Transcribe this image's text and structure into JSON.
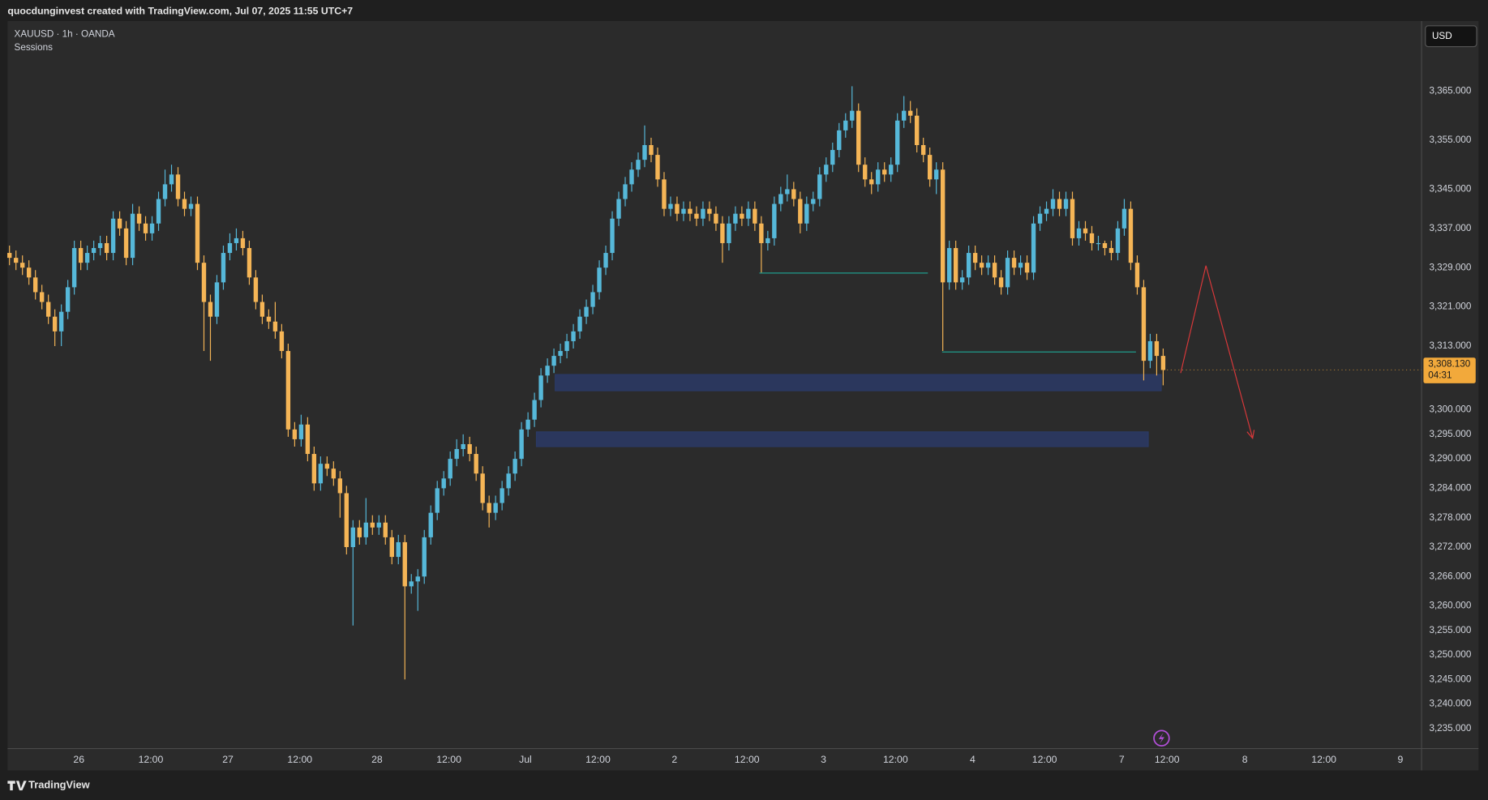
{
  "header": {
    "credit": "quocdunginvest created with TradingView.com, Jul 07, 2025 11:55 UTC+7",
    "symbol": "XAUUSD · 1h · OANDA",
    "indicator": "Sessions",
    "currency": "USD",
    "brand": "TradingView"
  },
  "chart_data": {
    "type": "candlestick",
    "up_color": "#56b8d9",
    "down_color": "#f5b556",
    "open": [
      3332,
      3331,
      3330,
      3329,
      3327,
      3324,
      3322,
      3319,
      3316,
      3320,
      3325,
      3333,
      3330,
      3332,
      3333,
      3334,
      3332,
      3339,
      3337,
      3331,
      3340,
      3338,
      3336,
      3338,
      3343,
      3346,
      3348,
      3343,
      3341,
      3342,
      3330,
      3322,
      3319,
      3326,
      3332,
      3334,
      3335,
      3333,
      3327,
      3322,
      3319,
      3318,
      3316,
      3312,
      3296,
      3294,
      3297,
      3291,
      3285,
      3289,
      3288,
      3286,
      3283,
      3272,
      3276,
      3274,
      3277,
      3276,
      3277,
      3274,
      3270,
      3273,
      3264,
      3265,
      3266,
      3274,
      3279,
      3284,
      3286,
      3290,
      3292,
      3293,
      3291,
      3287,
      3281,
      3279,
      3281,
      3284,
      3287,
      3290,
      3296,
      3298,
      3302,
      3307,
      3309,
      3311,
      3312,
      3314,
      3316,
      3319,
      3321,
      3324,
      3329,
      3332,
      3339,
      3343,
      3346,
      3349,
      3351,
      3354,
      3352,
      3347,
      3341,
      3342,
      3340,
      3341,
      3340,
      3339,
      3341,
      3340,
      3338,
      3334,
      3338,
      3340,
      3339,
      3341,
      3338,
      3334,
      3335,
      3342,
      3344,
      3345,
      3343,
      3338,
      3342,
      3343,
      3348,
      3350,
      3353,
      3357,
      3359,
      3361,
      3350,
      3347,
      3346,
      3349,
      3348,
      3350,
      3359,
      3361,
      3360,
      3354,
      3352,
      3347,
      3349,
      3326,
      3333,
      3326,
      3327,
      3332,
      3330,
      3329,
      3330,
      3327,
      3325,
      3331,
      3329,
      3330,
      3328,
      3338,
      3340,
      3341,
      3343,
      3341,
      3343,
      3335,
      3337,
      3336,
      3334,
      3334,
      3333,
      3332,
      3337,
      3341,
      3330,
      3325,
      3310,
      3314,
      3311
    ],
    "high": [
      3333.5,
      3332.5,
      3331.5,
      3330.5,
      3328.5,
      3325.5,
      3323.5,
      3320.5,
      3321.5,
      3326.5,
      3334.5,
      3334.5,
      3333.5,
      3334.5,
      3335.5,
      3335.5,
      3340.5,
      3340.5,
      3338.5,
      3342,
      3341.5,
      3339.5,
      3339.5,
      3344.5,
      3349,
      3350,
      3349.5,
      3344.5,
      3343.5,
      3343.5,
      3331.5,
      3323.5,
      3327.5,
      3333.5,
      3336,
      3337,
      3336.5,
      3334.5,
      3328.5,
      3323.5,
      3320.5,
      3322,
      3317.5,
      3313.5,
      3297.5,
      3299,
      3298.5,
      3292.5,
      3290.5,
      3290.5,
      3289.5,
      3287.5,
      3284.5,
      3277.5,
      3277.5,
      3282,
      3278.5,
      3278.5,
      3278.5,
      3275.5,
      3274.5,
      3274.5,
      3266.5,
      3267.5,
      3275.5,
      3280.5,
      3285.5,
      3287.5,
      3291.5,
      3294,
      3295,
      3294.5,
      3292.5,
      3288.5,
      3282.5,
      3282.5,
      3285.5,
      3288.5,
      3291.5,
      3297.5,
      3299.5,
      3303.5,
      3308.5,
      3310.5,
      3312.5,
      3313.5,
      3315.5,
      3317.5,
      3320.5,
      3322.5,
      3325.5,
      3330.5,
      3333.5,
      3340.5,
      3344.5,
      3347.5,
      3350.5,
      3352.5,
      3358,
      3355.5,
      3353.5,
      3348.5,
      3343.5,
      3343.5,
      3342.5,
      3342.5,
      3341.5,
      3342.5,
      3342.5,
      3341.5,
      3339.5,
      3339.5,
      3341.5,
      3341.5,
      3342.5,
      3342.5,
      3339.5,
      3336.5,
      3343.5,
      3345.5,
      3348,
      3346.5,
      3344.5,
      3343.5,
      3344.5,
      3349.5,
      3351.5,
      3354.5,
      3358.5,
      3360.5,
      3366,
      3362.5,
      3351.5,
      3348.5,
      3350.5,
      3350.5,
      3351.5,
      3360.5,
      3364,
      3363,
      3361.5,
      3355.5,
      3353.5,
      3350.5,
      3350.5,
      3334.5,
      3334.5,
      3328.5,
      3333.5,
      3333.5,
      3331.5,
      3331.5,
      3331.5,
      3328.5,
      3332.5,
      3332.5,
      3331.5,
      3331.5,
      3339.5,
      3341.5,
      3342.5,
      3345,
      3344.5,
      3344.5,
      3344.5,
      3338.5,
      3338.5,
      3337.5,
      3335.5,
      3334.5,
      3334.5,
      3338.5,
      3343,
      3342.5,
      3331.5,
      3326.5,
      3315.5,
      3315.5,
      3312.5
    ],
    "low": [
      3329.5,
      3328.5,
      3327.5,
      3325.5,
      3322.5,
      3320.5,
      3317.5,
      3313,
      3313,
      3318.5,
      3323.5,
      3328.5,
      3328.5,
      3330.5,
      3331.5,
      3330.5,
      3330.5,
      3335.5,
      3329.5,
      3329.5,
      3336.5,
      3334.5,
      3334.5,
      3336.5,
      3341.5,
      3344.5,
      3341.5,
      3339.5,
      3339.5,
      3328.5,
      3312,
      3310,
      3317.5,
      3324.5,
      3330.5,
      3332.5,
      3331.5,
      3325.5,
      3320.5,
      3317.5,
      3316.5,
      3314.5,
      3310.5,
      3294.5,
      3292.5,
      3292.5,
      3289.5,
      3283.5,
      3283.5,
      3286.5,
      3284.5,
      3278,
      3270.5,
      3256,
      3272.5,
      3272.5,
      3274.5,
      3274.5,
      3272.5,
      3268.5,
      3268.5,
      3245,
      3262.5,
      3259,
      3264.5,
      3272.5,
      3277.5,
      3282.5,
      3284.5,
      3288.5,
      3290.5,
      3289.5,
      3285.5,
      3279.5,
      3276,
      3277.5,
      3279.5,
      3282.5,
      3285.5,
      3288.5,
      3294.5,
      3296.5,
      3300.5,
      3305.5,
      3307.5,
      3309.5,
      3310.5,
      3312.5,
      3314.5,
      3317.5,
      3319.5,
      3322.5,
      3327.5,
      3330.5,
      3337.5,
      3341.5,
      3344.5,
      3347.5,
      3349.5,
      3350.5,
      3345.5,
      3339.5,
      3339.5,
      3338.5,
      3338.5,
      3338.5,
      3337.5,
      3337.5,
      3338.5,
      3336.5,
      3330,
      3332.5,
      3336.5,
      3337.5,
      3337.5,
      3336.5,
      3328,
      3332.5,
      3333.5,
      3340.5,
      3342.5,
      3341.5,
      3336,
      3336.5,
      3340.5,
      3341.5,
      3346.5,
      3348.5,
      3351.5,
      3355.5,
      3357.5,
      3348.5,
      3345.5,
      3344,
      3344.5,
      3346.5,
      3346.5,
      3348.5,
      3357.5,
      3358.5,
      3352.5,
      3350.5,
      3345.5,
      3344,
      3312,
      3324.5,
      3324.5,
      3324.5,
      3325.5,
      3328.5,
      3327.5,
      3327.5,
      3325.5,
      3323.5,
      3323.5,
      3327.5,
      3327.5,
      3326.5,
      3326.5,
      3336.5,
      3338.5,
      3339.5,
      3339.5,
      3339.5,
      3333.5,
      3333.5,
      3334.5,
      3332.5,
      3332.5,
      3331.5,
      3330.5,
      3330.5,
      3335.5,
      3328.5,
      3323.5,
      3306,
      3308.5,
      3307,
      3305
    ],
    "close": [
      3331,
      3330,
      3329,
      3327,
      3324,
      3322,
      3319,
      3316,
      3320,
      3325,
      3333,
      3330,
      3332,
      3333,
      3334,
      3332,
      3339,
      3337,
      3331,
      3340,
      3338,
      3336,
      3338,
      3343,
      3346,
      3348,
      3343,
      3341,
      3342,
      3330,
      3322,
      3319,
      3326,
      3332,
      3334,
      3335,
      3333,
      3327,
      3322,
      3319,
      3318,
      3316,
      3312,
      3296,
      3294,
      3297,
      3291,
      3285,
      3289,
      3288,
      3286,
      3283,
      3272,
      3276,
      3274,
      3277,
      3276,
      3277,
      3274,
      3270,
      3273,
      3264,
      3265,
      3266,
      3274,
      3279,
      3284,
      3286,
      3290,
      3292,
      3293,
      3291,
      3287,
      3281,
      3279,
      3281,
      3284,
      3287,
      3290,
      3296,
      3298,
      3302,
      3307,
      3309,
      3311,
      3312,
      3314,
      3316,
      3319,
      3321,
      3324,
      3329,
      3332,
      3339,
      3343,
      3346,
      3349,
      3351,
      3354,
      3352,
      3347,
      3341,
      3342,
      3340,
      3341,
      3340,
      3339,
      3341,
      3340,
      3338,
      3334,
      3338,
      3340,
      3339,
      3341,
      3338,
      3334,
      3335,
      3342,
      3344,
      3345,
      3343,
      3338,
      3342,
      3343,
      3348,
      3350,
      3353,
      3357,
      3359,
      3361,
      3350,
      3347,
      3346,
      3349,
      3348,
      3350,
      3359,
      3361,
      3360,
      3354,
      3352,
      3347,
      3349,
      3326,
      3333,
      3326,
      3327,
      3332,
      3330,
      3329,
      3330,
      3327,
      3325,
      3331,
      3329,
      3330,
      3328,
      3338,
      3340,
      3341,
      3343,
      3341,
      3343,
      3335,
      3337,
      3336,
      3334,
      3334,
      3333,
      3332,
      3337,
      3341,
      3330,
      3325,
      3310,
      3314,
      3311,
      3308.13
    ],
    "last_price_label": "3,308.130",
    "countdown": "04:31",
    "last_price_color": "#f2a93b",
    "xlim": [
      0,
      217.87
    ],
    "xticks": [
      {
        "value": 10.7,
        "label": "26"
      },
      {
        "value": 21.8,
        "label": "12:00"
      },
      {
        "value": 33.7,
        "label": "27"
      },
      {
        "value": 44.8,
        "label": "12:00"
      },
      {
        "value": 56.7,
        "label": "28"
      },
      {
        "value": 67.8,
        "label": "12:00"
      },
      {
        "value": 79.6,
        "label": "Jul"
      },
      {
        "value": 90.8,
        "label": "12:00"
      },
      {
        "value": 102.6,
        "label": "2"
      },
      {
        "value": 113.8,
        "label": "12:00"
      },
      {
        "value": 125.6,
        "label": "3"
      },
      {
        "value": 136.7,
        "label": "12:00"
      },
      {
        "value": 148.6,
        "label": "4"
      },
      {
        "value": 159.7,
        "label": "12:00"
      },
      {
        "value": 171.6,
        "label": "7"
      },
      {
        "value": 178.6,
        "label": "12:00"
      },
      {
        "value": 190.6,
        "label": "8"
      },
      {
        "value": 202.8,
        "label": "12:00"
      },
      {
        "value": 214.6,
        "label": "9"
      }
    ],
    "ylim": [
      3230.9,
      3379.3
    ],
    "yticks": [
      {
        "value": 3365,
        "label": "3,365.000"
      },
      {
        "value": 3355,
        "label": "3,355.000"
      },
      {
        "value": 3345,
        "label": "3,345.000"
      },
      {
        "value": 3337,
        "label": "3,337.000"
      },
      {
        "value": 3329,
        "label": "3,329.000"
      },
      {
        "value": 3321,
        "label": "3,321.000"
      },
      {
        "value": 3313,
        "label": "3,313.000"
      },
      {
        "value": 3300,
        "label": "3,300.000"
      },
      {
        "value": 3295,
        "label": "3,295.000"
      },
      {
        "value": 3290,
        "label": "3,290.000"
      },
      {
        "value": 3284,
        "label": "3,284.000"
      },
      {
        "value": 3278,
        "label": "3,278.000"
      },
      {
        "value": 3272,
        "label": "3,272.000"
      },
      {
        "value": 3266,
        "label": "3,266.000"
      },
      {
        "value": 3260,
        "label": "3,260.000"
      },
      {
        "value": 3255,
        "label": "3,255.000"
      },
      {
        "value": 3250,
        "label": "3,250.000"
      },
      {
        "value": 3245,
        "label": "3,245.000"
      },
      {
        "value": 3240,
        "label": "3,240.000"
      },
      {
        "value": 3235,
        "label": "3,235.000"
      }
    ],
    "grid": false,
    "zones": [
      {
        "x": [
          84.2,
          177.7
        ],
        "y": [
          3303.9,
          3307.2
        ],
        "color": "#2b3a66"
      },
      {
        "x": [
          81.3,
          175.7
        ],
        "y": [
          3292.5,
          3295.5
        ],
        "color": "#2b3a66"
      }
    ],
    "lines": [
      {
        "x": [
          115.7,
          141.7
        ],
        "y": 3327.9,
        "color": "#1f9c8c"
      },
      {
        "x": [
          143.9,
          173.8
        ],
        "y": 3311.8,
        "color": "#1f9c8c"
      }
    ],
    "arrow": {
      "x": [
        180.7,
        184.6,
        191.8
      ],
      "y": [
        3307.5,
        3329.4,
        3294.2
      ],
      "color": "#d9383a"
    }
  }
}
